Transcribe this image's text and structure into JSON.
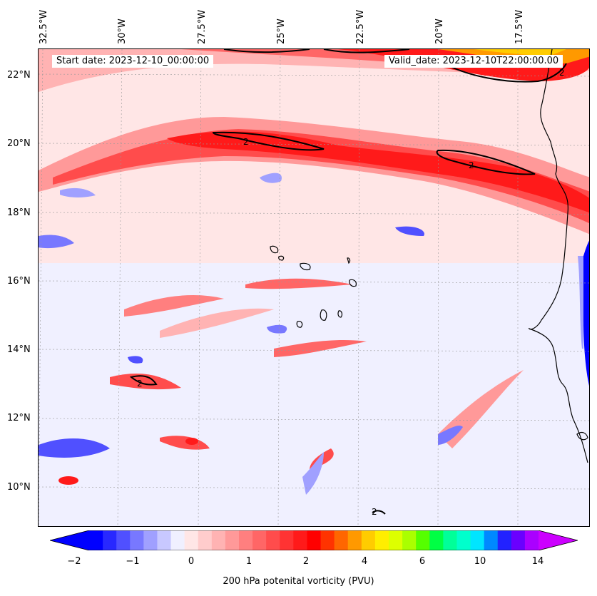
{
  "header": {
    "start_date": "Start date: 2023-12-10_00:00:00",
    "valid_date": "Valid_date: 2023-12-10T22:00:00.00"
  },
  "map": {
    "longitude_labels": [
      "32.5°W",
      "30°W",
      "27.5°W",
      "25°W",
      "22.5°W",
      "20°W",
      "17.5°W"
    ],
    "latitude_labels": [
      "22°N",
      "20°N",
      "18°N",
      "16°N",
      "14°N",
      "12°N",
      "10°N"
    ],
    "contour_labels": [
      "2",
      "2",
      "2",
      "2",
      "2"
    ],
    "field": "200 hPa potential vorticity",
    "contour_level": 2
  },
  "colorbar": {
    "label": "200 hPa potenital vorticity (PVU)",
    "ticks": [
      "−2",
      "−1",
      "0",
      "1",
      "2",
      "4",
      "6",
      "10",
      "14"
    ],
    "colors": [
      "#0000ff",
      "#2828ff",
      "#5050ff",
      "#7878ff",
      "#a0a0ff",
      "#c8c8ff",
      "#f0f0ff",
      "#ffe6e6",
      "#ffcccc",
      "#ffb3b3",
      "#ff9999",
      "#ff7f7f",
      "#ff6666",
      "#ff4c4c",
      "#ff3333",
      "#ff1a1a",
      "#ff0000",
      "#ff3300",
      "#ff6600",
      "#ff9900",
      "#ffcc00",
      "#ffee00",
      "#ddff00",
      "#aaff00",
      "#55ff00",
      "#00ff44",
      "#00ff99",
      "#00ffcc",
      "#00e5ff",
      "#0088ff",
      "#2222ff",
      "#6a00ff",
      "#aa00ff"
    ],
    "extend_low_color": "#0000ff",
    "extend_high_color": "#cc00ff"
  }
}
